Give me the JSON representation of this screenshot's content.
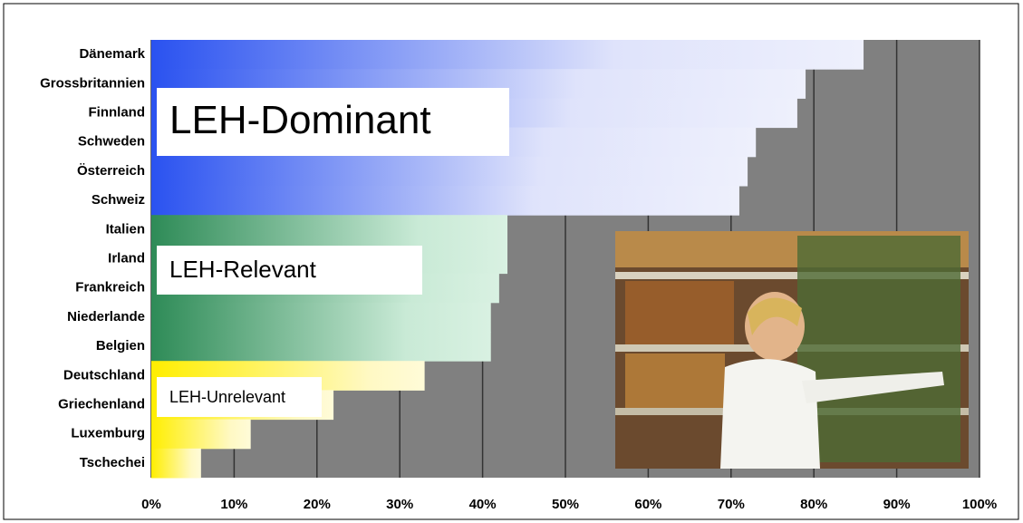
{
  "chart_data": {
    "type": "bar",
    "orientation": "horizontal",
    "series": [
      {
        "name": "LEH-Dominant",
        "color": "#2a52f0",
        "categories": [
          "Dänemark",
          "Grossbritannien",
          "Finnland",
          "Schweden",
          "Österreich",
          "Schweiz"
        ],
        "values": [
          86,
          79,
          78,
          73,
          72,
          71
        ]
      },
      {
        "name": "LEH-Relevant",
        "color": "#2e8b57",
        "categories": [
          "Italien",
          "Irland",
          "Frankreich",
          "Niederlande",
          "Belgien"
        ],
        "values": [
          43,
          43,
          42,
          41,
          41
        ]
      },
      {
        "name": "LEH-Unrelevant",
        "color": "#ffee00",
        "categories": [
          "Deutschland",
          "Griechenland",
          "Luxemburg",
          "Tschechei"
        ],
        "values": [
          33,
          22,
          12,
          6
        ]
      }
    ],
    "xlim": [
      0,
      100
    ],
    "xticks": [
      {
        "value": 0,
        "label": "0%"
      },
      {
        "value": 10,
        "label": "10%"
      },
      {
        "value": 20,
        "label": "20%"
      },
      {
        "value": 30,
        "label": "30%"
      },
      {
        "value": 40,
        "label": "40%"
      },
      {
        "value": 50,
        "label": "50%"
      },
      {
        "value": 60,
        "label": "60%"
      },
      {
        "value": 70,
        "label": "70%"
      },
      {
        "value": 80,
        "label": "80%"
      },
      {
        "value": 90,
        "label": "90%"
      },
      {
        "value": 100,
        "label": "100%"
      }
    ],
    "grid": true,
    "background": "#808080"
  }
}
